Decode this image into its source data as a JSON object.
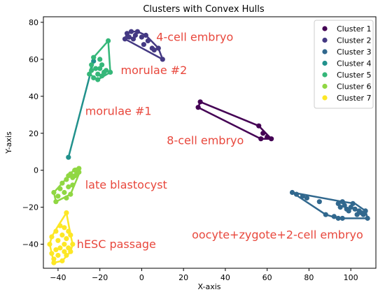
{
  "chart_data": {
    "type": "scatter",
    "title": "Clusters with Convex Hulls",
    "xlabel": "X-axis",
    "ylabel": "Y-axis",
    "xlim": [
      -47,
      112
    ],
    "ylim": [
      -53,
      83
    ],
    "xticks": [
      -40,
      -20,
      0,
      20,
      40,
      60,
      80,
      100
    ],
    "yticks": [
      -40,
      -20,
      0,
      20,
      40,
      60,
      80
    ],
    "grid": false,
    "legend_position": "top-right",
    "series": [
      {
        "name": "Cluster 1",
        "color": "#440154",
        "points": [
          [
            28,
            37
          ],
          [
            27,
            34
          ],
          [
            56,
            24
          ],
          [
            58,
            20
          ],
          [
            57,
            17
          ],
          [
            60,
            18
          ],
          [
            62,
            17
          ]
        ],
        "hull": [
          [
            28,
            37
          ],
          [
            56,
            24
          ],
          [
            62,
            17
          ],
          [
            57,
            17
          ],
          [
            27,
            34
          ]
        ]
      },
      {
        "name": "Cluster 2",
        "color": "#443983",
        "points": [
          [
            -8,
            71
          ],
          [
            -7,
            74
          ],
          [
            -5,
            75
          ],
          [
            -3,
            73
          ],
          [
            -2,
            75
          ],
          [
            -4,
            71
          ],
          [
            0,
            72
          ],
          [
            1,
            68
          ],
          [
            2,
            73
          ],
          [
            3,
            70
          ],
          [
            5,
            66
          ],
          [
            6,
            65
          ],
          [
            8,
            66
          ],
          [
            10,
            60
          ],
          [
            -6,
            72
          ]
        ],
        "hull": [
          [
            -7,
            74
          ],
          [
            -5,
            75
          ],
          [
            -2,
            75
          ],
          [
            2,
            73
          ],
          [
            8,
            66
          ],
          [
            10,
            60
          ],
          [
            -8,
            71
          ]
        ]
      },
      {
        "name": "Cluster 3",
        "color": "#31688e",
        "points": [
          [
            72,
            -12
          ],
          [
            74,
            -13
          ],
          [
            77,
            -14
          ],
          [
            79,
            -15
          ],
          [
            85,
            -17
          ],
          [
            88,
            -24
          ],
          [
            92,
            -25
          ],
          [
            94,
            -26
          ],
          [
            94,
            -18
          ],
          [
            95,
            -20
          ],
          [
            96,
            -17
          ],
          [
            97,
            -19
          ],
          [
            98,
            -21
          ],
          [
            99,
            -22
          ],
          [
            100,
            -20
          ],
          [
            101,
            -18
          ],
          [
            102,
            -21
          ],
          [
            103,
            -24
          ],
          [
            104,
            -22
          ],
          [
            105,
            -23
          ],
          [
            106,
            -24
          ],
          [
            107,
            -22
          ],
          [
            108,
            -26
          ],
          [
            96,
            -26
          ]
        ],
        "hull": [
          [
            72,
            -12
          ],
          [
            96,
            -17
          ],
          [
            102,
            -18
          ],
          [
            107,
            -22
          ],
          [
            108,
            -26
          ],
          [
            94,
            -26
          ],
          [
            88,
            -24
          ]
        ]
      },
      {
        "name": "Cluster 4",
        "color": "#21918c",
        "points": [
          [
            -35,
            7
          ],
          [
            -23,
            59
          ]
        ],
        "hull": [
          [
            -35,
            7
          ],
          [
            -23,
            59
          ]
        ]
      },
      {
        "name": "Cluster 5",
        "color": "#35b779",
        "points": [
          [
            -25,
            52
          ],
          [
            -24,
            57
          ],
          [
            -23,
            61
          ],
          [
            -22,
            55
          ],
          [
            -21,
            52
          ],
          [
            -20,
            55
          ],
          [
            -19,
            57
          ],
          [
            -18,
            53
          ],
          [
            -17,
            54
          ],
          [
            -16,
            70
          ],
          [
            -15,
            53
          ],
          [
            -21,
            49
          ],
          [
            -19,
            51
          ],
          [
            -23,
            50
          ],
          [
            -24,
            54
          ],
          [
            -20,
            60
          ]
        ],
        "hull": [
          [
            -24,
            57
          ],
          [
            -23,
            61
          ],
          [
            -16,
            70
          ],
          [
            -15,
            53
          ],
          [
            -21,
            49
          ],
          [
            -25,
            52
          ]
        ]
      },
      {
        "name": "Cluster 6",
        "color": "#90d743",
        "points": [
          [
            -42,
            -12
          ],
          [
            -41,
            -17
          ],
          [
            -40,
            -14
          ],
          [
            -39,
            -10
          ],
          [
            -38,
            -7
          ],
          [
            -37,
            -12
          ],
          [
            -36,
            -5
          ],
          [
            -35,
            -3
          ],
          [
            -35,
            -9
          ],
          [
            -34,
            -2
          ],
          [
            -33,
            -4
          ],
          [
            -32,
            0
          ],
          [
            -31,
            -1
          ],
          [
            -30,
            1
          ],
          [
            -31,
            -2
          ],
          [
            -34,
            -13
          ],
          [
            -36,
            -15
          ],
          [
            -33,
            -8
          ],
          [
            -32,
            -3
          ],
          [
            -30,
            -1
          ]
        ],
        "hull": [
          [
            -42,
            -12
          ],
          [
            -34,
            -2
          ],
          [
            -32,
            1
          ],
          [
            -30,
            1
          ],
          [
            -30,
            -2
          ],
          [
            -34,
            -13
          ],
          [
            -41,
            -17
          ]
        ]
      },
      {
        "name": "Cluster 7",
        "color": "#fde725",
        "points": [
          [
            -44,
            -40
          ],
          [
            -43,
            -45
          ],
          [
            -43,
            -36
          ],
          [
            -42,
            -48
          ],
          [
            -42,
            -50
          ],
          [
            -41,
            -43
          ],
          [
            -40,
            -38
          ],
          [
            -40,
            -46
          ],
          [
            -39,
            -42
          ],
          [
            -38,
            -35
          ],
          [
            -38,
            -49
          ],
          [
            -37,
            -40
          ],
          [
            -37,
            -44
          ],
          [
            -36,
            -23
          ],
          [
            -36,
            -37
          ],
          [
            -36,
            -46
          ],
          [
            -35,
            -42
          ],
          [
            -35,
            -33
          ],
          [
            -34,
            -35
          ],
          [
            -34,
            -44
          ],
          [
            -33,
            -40
          ],
          [
            -41,
            -33
          ],
          [
            -39,
            -30
          ],
          [
            -37,
            -31
          ]
        ],
        "hull": [
          [
            -44,
            -40
          ],
          [
            -43,
            -36
          ],
          [
            -41,
            -32
          ],
          [
            -36,
            -23
          ],
          [
            -34,
            -35
          ],
          [
            -33,
            -40
          ],
          [
            -34,
            -44
          ],
          [
            -38,
            -49
          ],
          [
            -42,
            -50
          ]
        ]
      }
    ],
    "annotations": [
      {
        "text": "4-cell embryo",
        "x": 7,
        "y": 70
      },
      {
        "text": "morulae #2",
        "x": -10,
        "y": 52
      },
      {
        "text": "morulae #1",
        "x": -27,
        "y": 30
      },
      {
        "text": "8-cell embryo",
        "x": 12,
        "y": 14
      },
      {
        "text": "late blastocyst",
        "x": -27,
        "y": -10
      },
      {
        "text": "oocyte+zygote+2-cell embryo",
        "x": 24,
        "y": -37
      },
      {
        "text": "hESC passage",
        "x": -31,
        "y": -42
      }
    ]
  }
}
